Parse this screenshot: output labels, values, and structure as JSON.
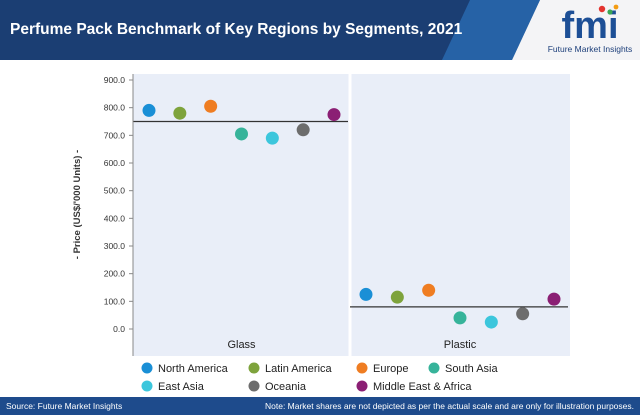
{
  "header": {
    "title": "Perfume Pack Benchmark of Key Regions by Segments, 2021",
    "colors": {
      "band": "#1b3e73",
      "accent": "#2f7fd0"
    }
  },
  "logo": {
    "letters": "fmi",
    "tagline": "Future Market Insights",
    "colors": {
      "blue": "#1d4f96",
      "red": "#e3342f",
      "green": "#3aa655",
      "orange": "#f39c12"
    }
  },
  "chart_data": {
    "type": "scatter",
    "ylabel": "- Price (US$/'000 Units) -",
    "ylim": [
      0,
      900
    ],
    "yticks": [
      "0.0",
      "100.0",
      "200.0",
      "300.0",
      "400.0",
      "500.0",
      "600.0",
      "700.0",
      "800.0",
      "900.0"
    ],
    "categories": [
      "Glass",
      "Plastic"
    ],
    "reference_lines": [
      750,
      80
    ],
    "series": [
      {
        "name": "North America",
        "color": "#1a8fd6",
        "values": [
          790,
          125
        ]
      },
      {
        "name": "Latin America",
        "color": "#7ea33c",
        "values": [
          780,
          115
        ]
      },
      {
        "name": "Europe",
        "color": "#ef7d22",
        "values": [
          805,
          140
        ]
      },
      {
        "name": "South Asia",
        "color": "#36b39a",
        "values": [
          705,
          40
        ]
      },
      {
        "name": "East Asia",
        "color": "#3cc6dc",
        "values": [
          690,
          25
        ]
      },
      {
        "name": "Oceania",
        "color": "#6d6d6d",
        "values": [
          720,
          55
        ]
      },
      {
        "name": "Middle East & Africa",
        "color": "#8b1f74",
        "values": [
          775,
          108
        ]
      }
    ],
    "panel_color": "#e9eef8",
    "grid": false,
    "legend_position": "bottom"
  },
  "footer": {
    "source": "Source: Future Market Insights",
    "note": "Note: Market shares are not depicted as per the actual scale and are only for illustration purposes."
  }
}
